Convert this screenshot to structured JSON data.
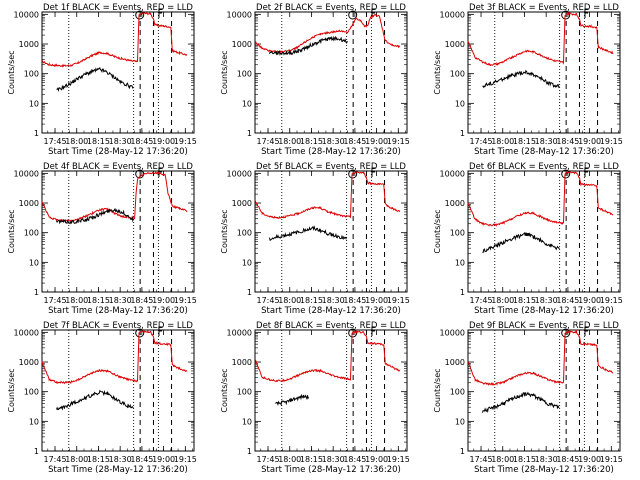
{
  "figure": {
    "xlabel": "Start Time (28-May-12 17:36:20)",
    "ylabel": "Counts/sec",
    "xticks": [
      {
        "value": 9,
        "label": "17:45"
      },
      {
        "value": 24,
        "label": "18:00"
      },
      {
        "value": 39,
        "label": "18:15"
      },
      {
        "value": 54,
        "label": "18:30"
      },
      {
        "value": 69,
        "label": "18:45"
      },
      {
        "value": 84,
        "label": "19:00"
      },
      {
        "value": 99,
        "label": "19:15"
      }
    ],
    "yticks": [
      {
        "value": 1,
        "label": "1"
      },
      {
        "value": 10,
        "label": "10"
      },
      {
        "value": 100,
        "label": "100"
      },
      {
        "value": 1000,
        "label": "1000"
      },
      {
        "value": 10000,
        "label": "10000"
      }
    ],
    "xlim_minutes": [
      0,
      105
    ],
    "ylim": [
      1,
      12000
    ],
    "yscale": "log",
    "colors": {
      "black": "#000000",
      "red": "#dd0000"
    },
    "markers": {
      "dotted": [
        18.5,
        63.3,
        80.4
      ],
      "dashed": [
        67.8,
        77.0,
        89.5
      ]
    },
    "symbols": {
      "circle": 67.5,
      "f": 80.8
    }
  },
  "chart_data": [
    {
      "type": "line",
      "title": "Det 1f  BLACK = Events, RED = LLD",
      "red": {
        "t": [
          0,
          5,
          10,
          15,
          20,
          25,
          30,
          35,
          40,
          45,
          50,
          55,
          60,
          66,
          67,
          68,
          70,
          75,
          77,
          78,
          80,
          85,
          89,
          90,
          95,
          100
        ],
        "v": [
          260,
          200,
          190,
          185,
          190,
          230,
          310,
          420,
          520,
          480,
          380,
          320,
          280,
          250,
          9500,
          10500,
          10800,
          10500,
          7000,
          4500,
          4200,
          4000,
          3700,
          600,
          500,
          430
        ]
      },
      "black": {
        "t": [
          10,
          15,
          20,
          25,
          30,
          35,
          40,
          45,
          50,
          55,
          60,
          63
        ],
        "v": [
          27,
          35,
          48,
          70,
          95,
          120,
          140,
          110,
          75,
          50,
          40,
          32
        ]
      }
    },
    {
      "type": "line",
      "title": "Det 2f  BLACK = Events, RED = LLD",
      "red": {
        "t": [
          0,
          5,
          10,
          15,
          20,
          25,
          30,
          35,
          40,
          45,
          50,
          55,
          60,
          64,
          68,
          70,
          73,
          76,
          78,
          80,
          83,
          86,
          90,
          95,
          100
        ],
        "v": [
          1200,
          700,
          600,
          550,
          560,
          620,
          800,
          1200,
          1700,
          2100,
          2400,
          2600,
          2800,
          2400,
          5000,
          7500,
          6000,
          3800,
          4500,
          8000,
          9500,
          8500,
          1300,
          900,
          800
        ]
      },
      "black": {
        "t": [
          10,
          15,
          20,
          25,
          30,
          35,
          40,
          45,
          50,
          55,
          60,
          64
        ],
        "v": [
          520,
          500,
          490,
          500,
          580,
          750,
          980,
          1250,
          1450,
          1550,
          1400,
          1150
        ]
      }
    },
    {
      "type": "line",
      "title": "Det 3f  BLACK = Events, RED = LLD",
      "red": {
        "t": [
          0,
          5,
          10,
          15,
          20,
          25,
          30,
          35,
          40,
          45,
          50,
          55,
          60,
          66,
          67,
          68,
          70,
          75,
          77,
          78,
          80,
          85,
          89,
          90,
          95,
          100
        ],
        "v": [
          1200,
          350,
          250,
          200,
          210,
          260,
          350,
          460,
          580,
          550,
          430,
          330,
          270,
          240,
          9000,
          10200,
          10500,
          10000,
          7000,
          4200,
          4100,
          3900,
          3600,
          800,
          620,
          500
        ]
      },
      "black": {
        "t": [
          10,
          15,
          20,
          25,
          30,
          35,
          40,
          45,
          50,
          55,
          60,
          63
        ],
        "v": [
          38,
          45,
          55,
          70,
          85,
          100,
          110,
          95,
          70,
          50,
          40,
          38
        ]
      }
    },
    {
      "type": "line",
      "title": "Det 4f  BLACK = Events, RED = LLD",
      "red": {
        "t": [
          0,
          5,
          10,
          15,
          20,
          25,
          30,
          35,
          40,
          45,
          50,
          55,
          60,
          64,
          65,
          66,
          70,
          75,
          80,
          85,
          87,
          90,
          95,
          100
        ],
        "v": [
          1100,
          330,
          270,
          255,
          260,
          290,
          360,
          450,
          600,
          620,
          450,
          360,
          320,
          300,
          2200,
          6500,
          9200,
          10500,
          10200,
          9000,
          2200,
          800,
          650,
          550
        ]
      },
      "black": {
        "t": [
          10,
          15,
          20,
          25,
          30,
          35,
          40,
          45,
          50,
          55,
          60,
          63
        ],
        "v": [
          240,
          235,
          230,
          240,
          270,
          330,
          420,
          520,
          600,
          500,
          350,
          280
        ]
      }
    },
    {
      "type": "line",
      "title": "Det 5f  BLACK = Events, RED = LLD",
      "red": {
        "t": [
          0,
          5,
          10,
          15,
          20,
          25,
          30,
          35,
          40,
          45,
          50,
          55,
          60,
          66,
          67,
          68,
          70,
          75,
          77,
          78,
          80,
          85,
          89,
          90,
          95,
          100
        ],
        "v": [
          1200,
          450,
          350,
          320,
          340,
          380,
          450,
          560,
          700,
          680,
          520,
          430,
          370,
          340,
          9500,
          10500,
          10800,
          10500,
          7000,
          4800,
          4600,
          4400,
          4100,
          900,
          650,
          520
        ]
      },
      "black": {
        "t": [
          10,
          15,
          20,
          25,
          30,
          35,
          40,
          45,
          50,
          55,
          60,
          63
        ],
        "v": [
          60,
          70,
          80,
          90,
          105,
          125,
          140,
          120,
          95,
          80,
          70,
          60
        ]
      }
    },
    {
      "type": "line",
      "title": "Det 6f  BLACK = Events, RED = LLD",
      "red": {
        "t": [
          0,
          5,
          10,
          15,
          20,
          25,
          30,
          35,
          40,
          45,
          50,
          55,
          60,
          66,
          67,
          68,
          70,
          75,
          77,
          78,
          80,
          85,
          89,
          90,
          95,
          100
        ],
        "v": [
          1000,
          280,
          200,
          180,
          185,
          220,
          290,
          380,
          470,
          450,
          350,
          270,
          230,
          210,
          9500,
          10300,
          10600,
          10200,
          7000,
          4300,
          4200,
          4000,
          3800,
          700,
          520,
          420
        ]
      },
      "black": {
        "t": [
          10,
          15,
          20,
          25,
          30,
          35,
          40,
          45,
          50,
          55,
          60,
          63
        ],
        "v": [
          24,
          30,
          37,
          48,
          60,
          75,
          90,
          75,
          55,
          40,
          32,
          28
        ]
      }
    },
    {
      "type": "line",
      "title": "Det 7f  BLACK = Events, RED = LLD",
      "red": {
        "t": [
          0,
          5,
          10,
          15,
          20,
          25,
          30,
          35,
          40,
          45,
          50,
          55,
          60,
          66,
          67,
          68,
          70,
          75,
          77,
          78,
          80,
          85,
          89,
          90,
          95,
          100
        ],
        "v": [
          1000,
          260,
          210,
          200,
          210,
          250,
          330,
          440,
          520,
          500,
          380,
          300,
          250,
          230,
          9500,
          10300,
          10600,
          10300,
          7000,
          4500,
          4300,
          4100,
          3800,
          800,
          600,
          480
        ]
      },
      "black": {
        "t": [
          10,
          15,
          20,
          25,
          30,
          35,
          40,
          45,
          50,
          55,
          60,
          63
        ],
        "v": [
          25,
          30,
          38,
          48,
          62,
          78,
          95,
          85,
          60,
          42,
          32,
          28
        ]
      }
    },
    {
      "type": "line",
      "title": "Det 8f  BLACK = Events, RED = LLD",
      "red": {
        "t": [
          0,
          5,
          10,
          15,
          20,
          25,
          30,
          35,
          40,
          45,
          50,
          55,
          60,
          66,
          67,
          68,
          70,
          75,
          77,
          78,
          80,
          85,
          89,
          90,
          95,
          100
        ],
        "v": [
          1200,
          300,
          260,
          230,
          240,
          280,
          360,
          460,
          520,
          500,
          400,
          330,
          290,
          260,
          9200,
          10000,
          10400,
          10000,
          7000,
          4500,
          4300,
          4100,
          3800,
          900,
          650,
          520
        ]
      },
      "black": {
        "t": [
          14,
          18,
          22,
          26,
          30,
          34,
          37
        ],
        "v": [
          38,
          42,
          45,
          55,
          62,
          70,
          65
        ]
      }
    },
    {
      "type": "line",
      "title": "Det 9f  BLACK = Events, RED = LLD",
      "red": {
        "t": [
          0,
          5,
          10,
          15,
          20,
          25,
          30,
          35,
          40,
          45,
          50,
          55,
          60,
          66,
          67,
          68,
          70,
          75,
          77,
          78,
          80,
          85,
          89,
          90,
          95,
          100
        ],
        "v": [
          1000,
          250,
          190,
          180,
          185,
          210,
          280,
          360,
          430,
          420,
          330,
          260,
          220,
          200,
          9200,
          10200,
          10500,
          10200,
          7000,
          4200,
          4100,
          3900,
          3700,
          750,
          560,
          440
        ]
      },
      "black": {
        "t": [
          10,
          15,
          20,
          25,
          30,
          35,
          40,
          45,
          50,
          55,
          60,
          63
        ],
        "v": [
          22,
          26,
          32,
          42,
          55,
          70,
          85,
          75,
          55,
          40,
          33,
          30
        ]
      }
    }
  ]
}
